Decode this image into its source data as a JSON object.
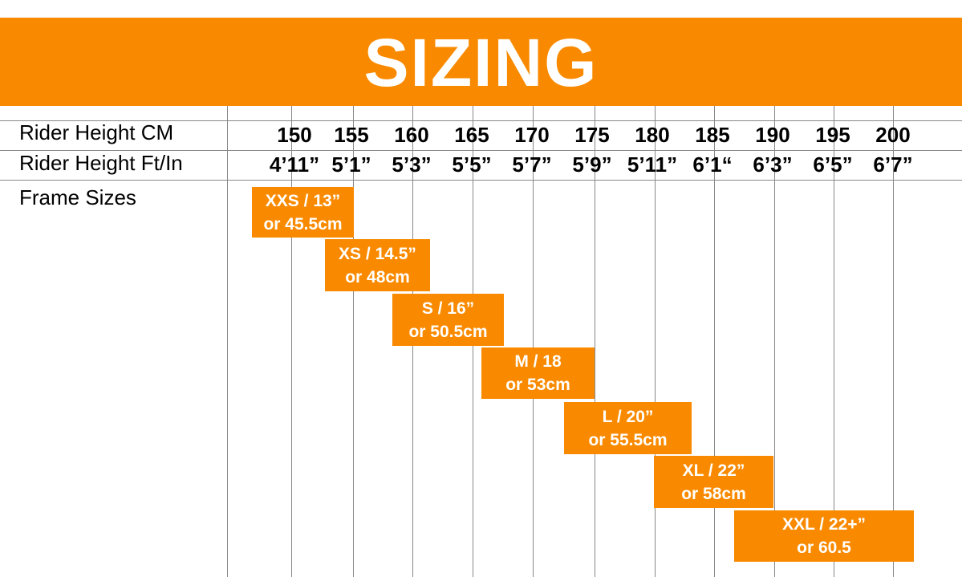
{
  "header": {
    "title": "SIZING"
  },
  "table": {
    "row_labels": [
      "Rider Height CM",
      "Rider Height Ft/In",
      "Frame Sizes"
    ],
    "heights_cm": [
      "150",
      "155",
      "160",
      "165",
      "170",
      "175",
      "180",
      "185",
      "190",
      "195",
      "200"
    ],
    "heights_ft_in": [
      "4’11”",
      "5’1”",
      "5’3”",
      "5’5”",
      "5’7”",
      "5’9”",
      "5’11”",
      "6’1“",
      "6’3”",
      "6’5”",
      "6’7”"
    ],
    "frame_sizes": [
      {
        "size": "XXS / 13”",
        "metric": "or 45.5cm"
      },
      {
        "size": "XS / 14.5”",
        "metric": "or 48cm"
      },
      {
        "size": "S / 16”",
        "metric": "or 50.5cm"
      },
      {
        "size": "M / 18",
        "metric": "or 53cm"
      },
      {
        "size": "L / 20”",
        "metric": "or 55.5cm"
      },
      {
        "size": "XL / 22”",
        "metric": "or 58cm"
      },
      {
        "size": "XXL / 22+”",
        "metric": "or 60.5"
      }
    ]
  }
}
